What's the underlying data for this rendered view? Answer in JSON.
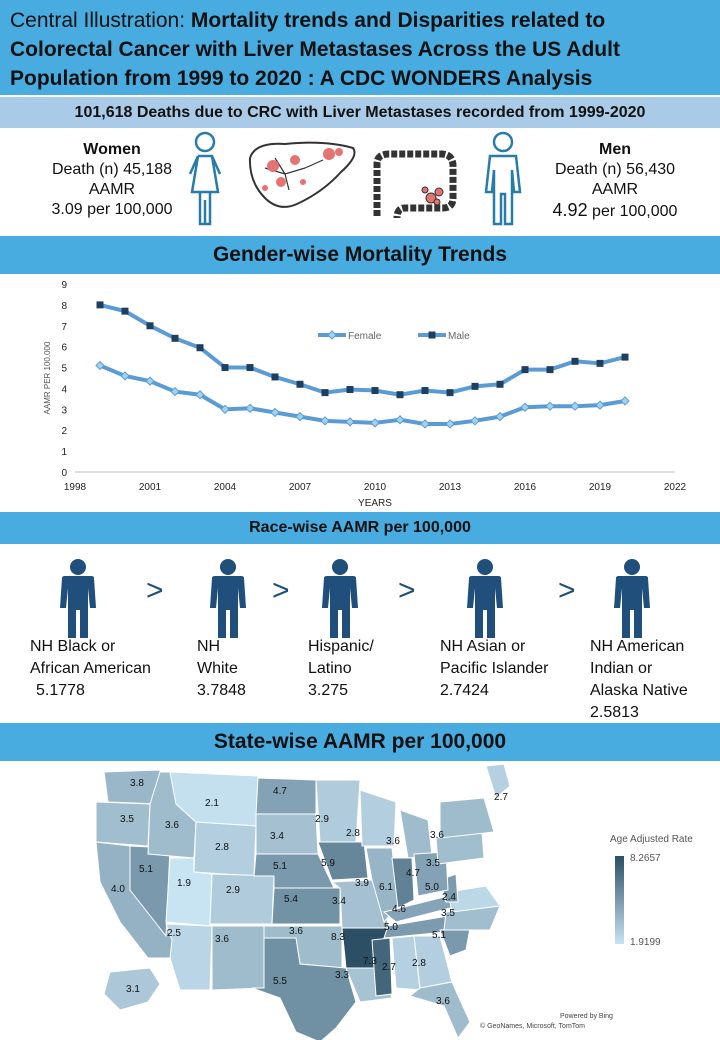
{
  "title": {
    "lead": "Central Illustration: ",
    "main": "Mortality trends and Disparities related to Colorectal Cancer with Liver Metastases Across the US Adult Population from 1999 to 2020 : A CDC WONDERS Analysis"
  },
  "deaths_banner": "101,618 Deaths due to CRC with Liver Metastases recorded from 1999-2020",
  "women": {
    "heading": "Women",
    "deaths": "Death (n) 45,188",
    "aamr_label": "AAMR",
    "aamr_value": "3.09 per 100,000"
  },
  "men": {
    "heading": "Men",
    "deaths": "Death (n) 56,430",
    "aamr_label": "AAMR",
    "aamr_num": "4.92",
    "aamr_unit": " per 100,000"
  },
  "gender_heading": "Gender-wise Mortality Trends",
  "race_heading": "Race-wise AAMR per 100,000",
  "state_heading": "State-wise AAMR per 100,000",
  "race_groups": [
    {
      "line1": "NH Black or",
      "line2": "African American",
      "line3": "",
      "value": "5.1778"
    },
    {
      "line1": "NH",
      "line2": "White",
      "line3": "",
      "value": "3.7848"
    },
    {
      "line1": "Hispanic/",
      "line2": "Latino",
      "line3": "",
      "value": "3.275"
    },
    {
      "line1": "NH Asian or",
      "line2": "Pacific Islander",
      "line3": "",
      "value": "2.7424"
    },
    {
      "line1": "NH American",
      "line2": "Indian or",
      "line3": "Alaska Native",
      "value": "2.5813"
    }
  ],
  "gt_symbol": ">",
  "colors": {
    "band": "#48ace0",
    "band_light": "#a9cbe7",
    "line_series": "#5b9bd5",
    "map_dark": "#2c4f66",
    "map_light": "#c8e3f2",
    "person_icon": "#1f4f7a"
  },
  "icons": [
    "woman-icon",
    "liver-icon",
    "colon-icon",
    "man-icon",
    "person-icon"
  ],
  "chart_data": {
    "type": "line",
    "title": "",
    "xlabel": "YEARS",
    "ylabel": "AAMR PER 100,000",
    "xlim": [
      1998,
      2022
    ],
    "ylim": [
      0,
      9
    ],
    "xticks": [
      1998,
      2001,
      2004,
      2007,
      2010,
      2013,
      2016,
      2019,
      2022
    ],
    "yticks": [
      0,
      1,
      2,
      3,
      4,
      5,
      6,
      7,
      8,
      9
    ],
    "grid": false,
    "legend": "top-right",
    "x": [
      1999,
      2000,
      2001,
      2002,
      2003,
      2004,
      2005,
      2006,
      2007,
      2008,
      2009,
      2010,
      2011,
      2012,
      2013,
      2014,
      2015,
      2016,
      2017,
      2018,
      2019,
      2020
    ],
    "series": [
      {
        "name": "Female",
        "marker": "diamond",
        "values": [
          5.1,
          4.6,
          4.35,
          3.85,
          3.7,
          3.0,
          3.05,
          2.85,
          2.65,
          2.45,
          2.4,
          2.35,
          2.5,
          2.3,
          2.3,
          2.45,
          2.65,
          3.1,
          3.15,
          3.15,
          3.2,
          3.4
        ]
      },
      {
        "name": "Male",
        "marker": "square",
        "values": [
          8.0,
          7.7,
          7.0,
          6.4,
          5.95,
          5.0,
          5.0,
          4.55,
          4.2,
          3.8,
          3.95,
          3.9,
          3.7,
          3.9,
          3.8,
          4.1,
          4.2,
          4.9,
          4.9,
          5.3,
          5.2,
          5.5
        ]
      }
    ]
  },
  "map": {
    "legend_title": "Age Adjusted Rate",
    "legend_max": "8.2657",
    "legend_min": "1.9199",
    "credit_line1": "Powered by Bing",
    "credit_line2": "© GeoNames, Microsoft, TomTom",
    "states": [
      {
        "abbr": "WA",
        "value": 3.8
      },
      {
        "abbr": "OR",
        "value": 3.5
      },
      {
        "abbr": "CA",
        "value": 4.0
      },
      {
        "abbr": "NV",
        "value": 5.1
      },
      {
        "abbr": "ID",
        "value": 3.6
      },
      {
        "abbr": "MT",
        "value": 2.1
      },
      {
        "abbr": "WY",
        "value": 2.8
      },
      {
        "abbr": "UT",
        "value": 1.9
      },
      {
        "abbr": "CO",
        "value": 2.9
      },
      {
        "abbr": "AZ",
        "value": 2.5
      },
      {
        "abbr": "NM",
        "value": 3.6
      },
      {
        "abbr": "ND",
        "value": 4.7
      },
      {
        "abbr": "SD",
        "value": 3.4
      },
      {
        "abbr": "NE",
        "value": 5.1
      },
      {
        "abbr": "KS",
        "value": 5.4
      },
      {
        "abbr": "OK",
        "value": 3.6
      },
      {
        "abbr": "TX",
        "value": 5.5
      },
      {
        "abbr": "MN",
        "value": 2.9
      },
      {
        "abbr": "IA",
        "value": 5.9
      },
      {
        "abbr": "MO",
        "value": 3.4
      },
      {
        "abbr": "AR",
        "value": 8.3
      },
      {
        "abbr": "LA",
        "value": 3.3
      },
      {
        "abbr": "WI",
        "value": 2.8
      },
      {
        "abbr": "IL",
        "value": 3.9
      },
      {
        "abbr": "MI",
        "value": 3.6
      },
      {
        "abbr": "IN",
        "value": 6.1
      },
      {
        "abbr": "KY",
        "value": 4.6
      },
      {
        "abbr": "TN",
        "value": 5.0
      },
      {
        "abbr": "MS",
        "value": 7.3
      },
      {
        "abbr": "AL",
        "value": 2.7
      },
      {
        "abbr": "GA",
        "value": 2.8
      },
      {
        "abbr": "FL",
        "value": 3.6
      },
      {
        "abbr": "SC",
        "value": 5.1
      },
      {
        "abbr": "NC",
        "value": 3.5
      },
      {
        "abbr": "VA",
        "value": 2.4
      },
      {
        "abbr": "WV",
        "value": 5.0
      },
      {
        "abbr": "OH",
        "value": 4.7
      },
      {
        "abbr": "PA",
        "value": 3.5
      },
      {
        "abbr": "NY",
        "value": 3.6
      },
      {
        "abbr": "ME",
        "value": 2.7
      },
      {
        "abbr": "AK",
        "value": 3.1
      }
    ]
  }
}
